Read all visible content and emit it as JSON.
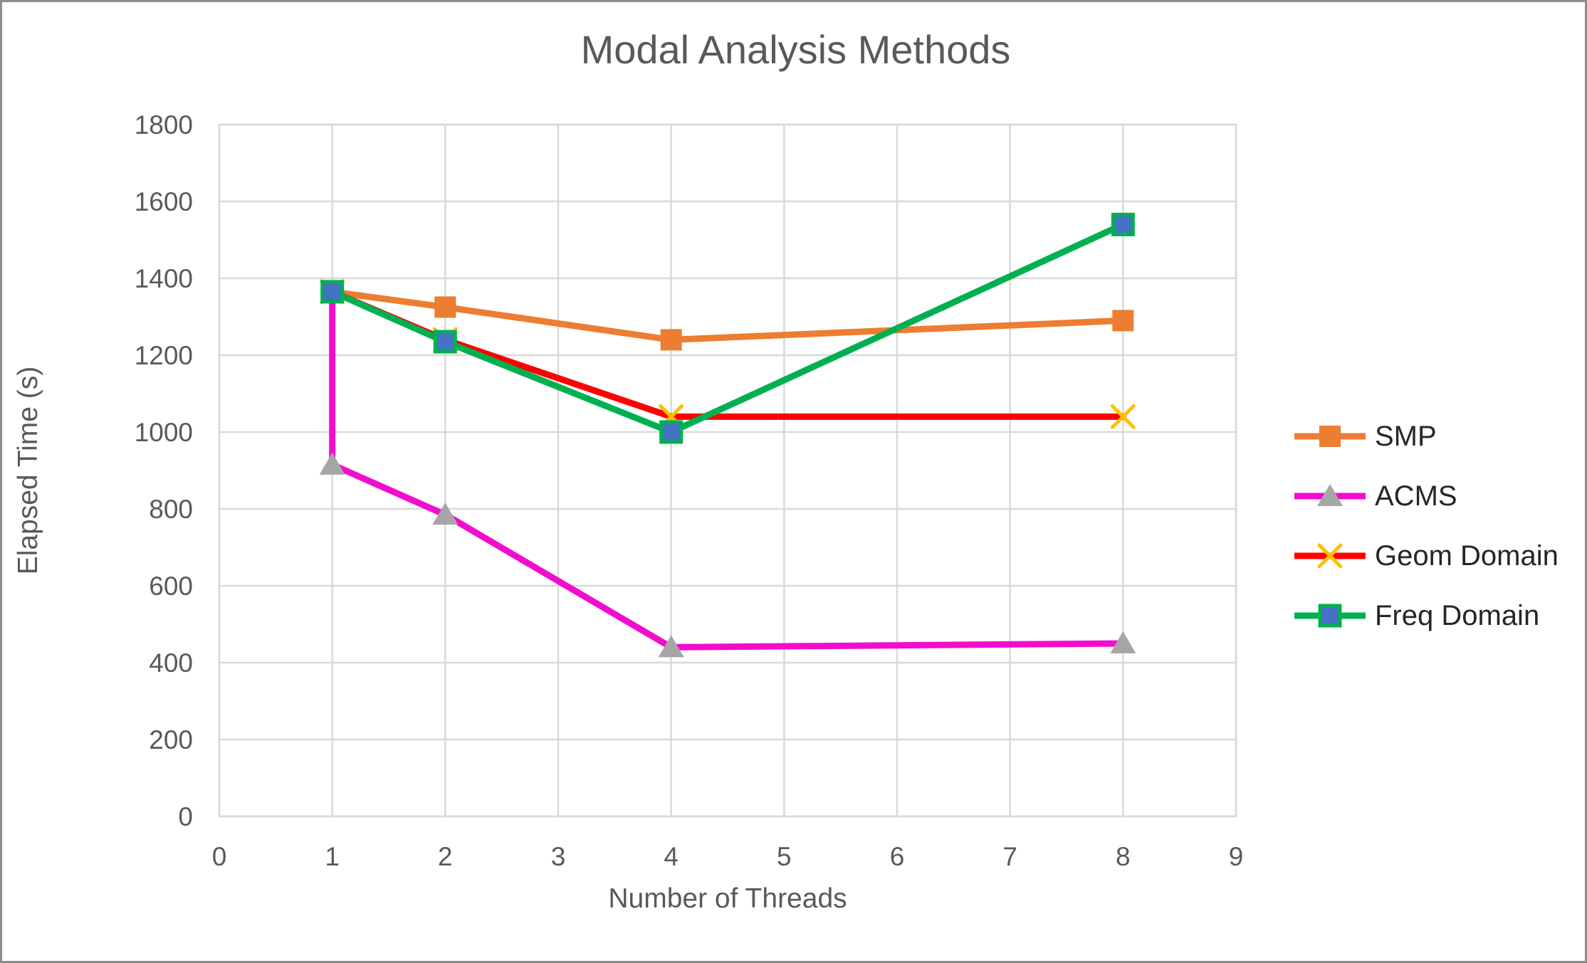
{
  "window": {
    "background": "#FFFFFF",
    "border_color": "#8C8C8C"
  },
  "colors": {
    "title_text": "#595959",
    "axis_text": "#595959",
    "legend_text": "#262626",
    "gridline": "#D9D9D9",
    "plot_border": "#D9D9D9"
  },
  "chart_data": {
    "type": "line",
    "title": "Modal Analysis Methods",
    "xlabel": "Number of Threads",
    "ylabel": "Elapsed Time (s)",
    "xlim": [
      0,
      9
    ],
    "ylim": [
      0,
      1800
    ],
    "x_ticks": [
      0,
      1,
      2,
      3,
      4,
      5,
      6,
      7,
      8,
      9
    ],
    "y_ticks": [
      0,
      200,
      400,
      600,
      800,
      1000,
      1200,
      1400,
      1600,
      1800
    ],
    "grid": true,
    "legend_position": "right",
    "series": [
      {
        "name": "SMP",
        "line_color": "#ED7D31",
        "marker": {
          "shape": "square",
          "fill": "#ED7D31"
        },
        "points": [
          {
            "x": 1,
            "y": 1365
          },
          {
            "x": 2,
            "y": 1325
          },
          {
            "x": 4,
            "y": 1240
          },
          {
            "x": 8,
            "y": 1290
          }
        ]
      },
      {
        "name": "ACMS",
        "line_color": "#F20DCE",
        "marker": {
          "shape": "triangle",
          "fill": "#A6A6A6"
        },
        "points": [
          {
            "x": 1,
            "y": 1365,
            "marker": false
          },
          {
            "x": 1,
            "y": 915
          },
          {
            "x": 2,
            "y": 785
          },
          {
            "x": 4,
            "y": 440
          },
          {
            "x": 8,
            "y": 450
          }
        ]
      },
      {
        "name": "Geom Domain",
        "line_color": "#FF0000",
        "marker": {
          "shape": "x",
          "stroke": "#FFC000"
        },
        "points": [
          {
            "x": 1,
            "y": 1365
          },
          {
            "x": 2,
            "y": 1240
          },
          {
            "x": 4,
            "y": 1040
          },
          {
            "x": 8,
            "y": 1040
          }
        ]
      },
      {
        "name": "Freq Domain",
        "line_color": "#00B050",
        "marker": {
          "shape": "square",
          "fill": "#4472C4",
          "stroke": "#00B050"
        },
        "points": [
          {
            "x": 1,
            "y": 1365
          },
          {
            "x": 2,
            "y": 1235
          },
          {
            "x": 4,
            "y": 1000
          },
          {
            "x": 8,
            "y": 1540
          }
        ]
      }
    ]
  }
}
